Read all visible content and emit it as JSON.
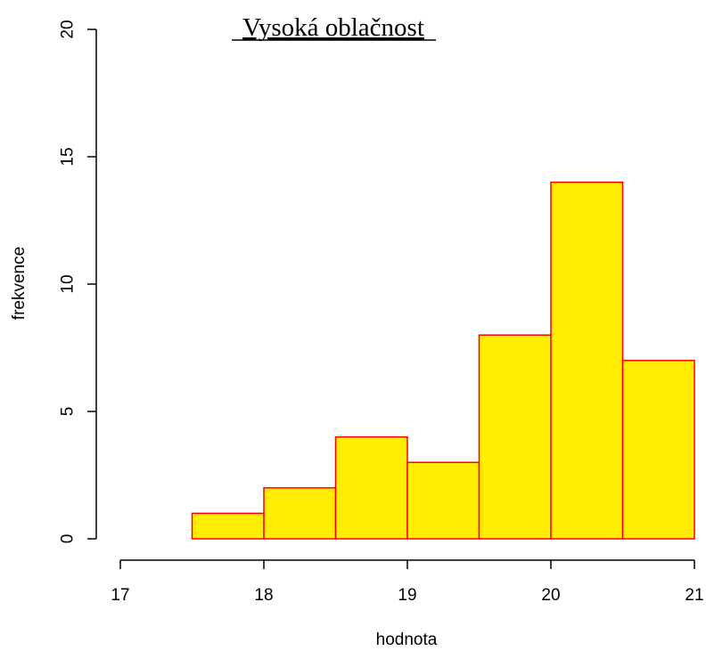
{
  "chart_data": {
    "type": "bar",
    "title": "Vysoká oblačnost",
    "xlabel": "hodnota",
    "ylabel": "frekvence",
    "xlim": [
      17,
      21
    ],
    "ylim": [
      0,
      20
    ],
    "x_ticks": [
      "17",
      "18",
      "19",
      "20",
      "21"
    ],
    "y_ticks": [
      "0",
      "5",
      "10",
      "15",
      "20"
    ],
    "bins": [
      [
        17.5,
        18.0
      ],
      [
        18.0,
        18.5
      ],
      [
        18.5,
        19.0
      ],
      [
        19.0,
        19.5
      ],
      [
        19.5,
        20.0
      ],
      [
        20.0,
        20.5
      ],
      [
        20.5,
        21.0
      ]
    ],
    "values": [
      1,
      2,
      4,
      3,
      8,
      14,
      7
    ],
    "bar_fill": "#ffee00",
    "bar_border": "#ff0000",
    "grid": false
  }
}
